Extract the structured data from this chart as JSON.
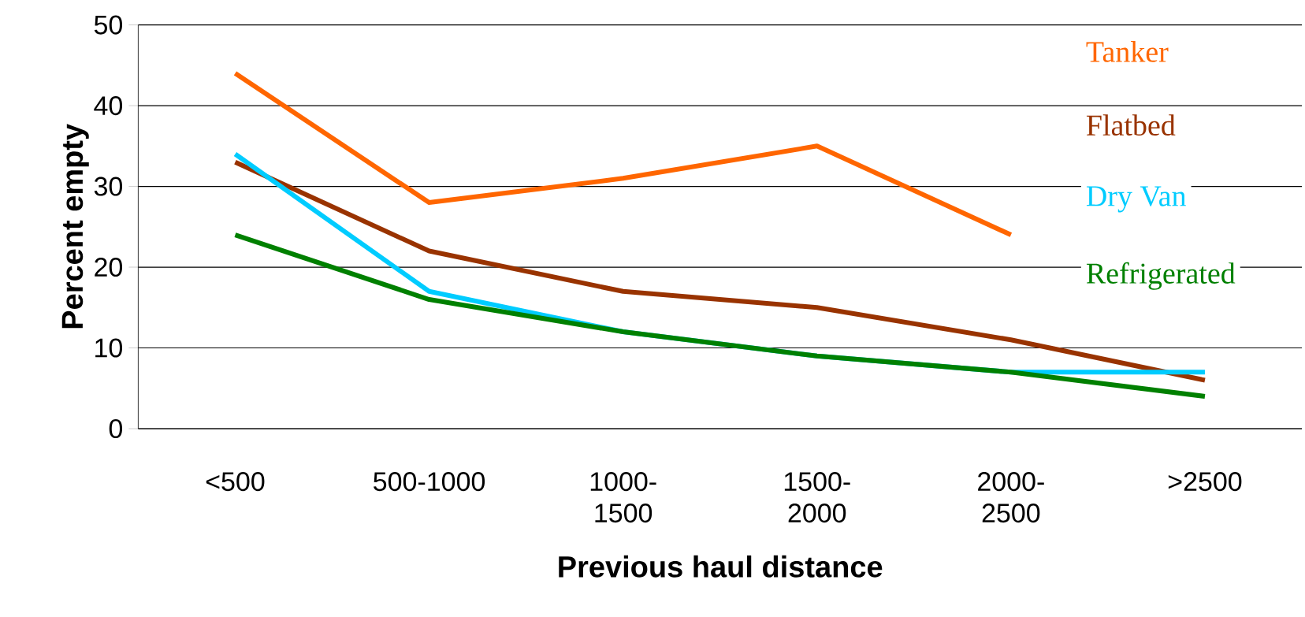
{
  "chart_data": {
    "type": "line",
    "xlabel": "Previous haul distance",
    "ylabel": "Percent empty",
    "categories": [
      "<500",
      "500-1000",
      "1000-1500",
      "1500-2000",
      "2000-2500",
      ">2500"
    ],
    "ylim": [
      0,
      50
    ],
    "yticks": [
      0,
      10,
      20,
      30,
      40,
      50
    ],
    "grid": "y",
    "legend": "right",
    "marker": "none",
    "line_style": "solid",
    "series": [
      {
        "name": "Tanker",
        "color": "#ff6600",
        "values": [
          44,
          28,
          31,
          35,
          24,
          null
        ]
      },
      {
        "name": "Flatbed",
        "color": "#993300",
        "values": [
          33,
          22,
          17,
          15,
          11,
          6
        ]
      },
      {
        "name": "Dry Van",
        "color": "#00ccff",
        "values": [
          34,
          17,
          12,
          9,
          7,
          7
        ]
      },
      {
        "name": "Refrigerated",
        "color": "#008000",
        "values": [
          24,
          16,
          12,
          9,
          7,
          4
        ]
      }
    ]
  }
}
